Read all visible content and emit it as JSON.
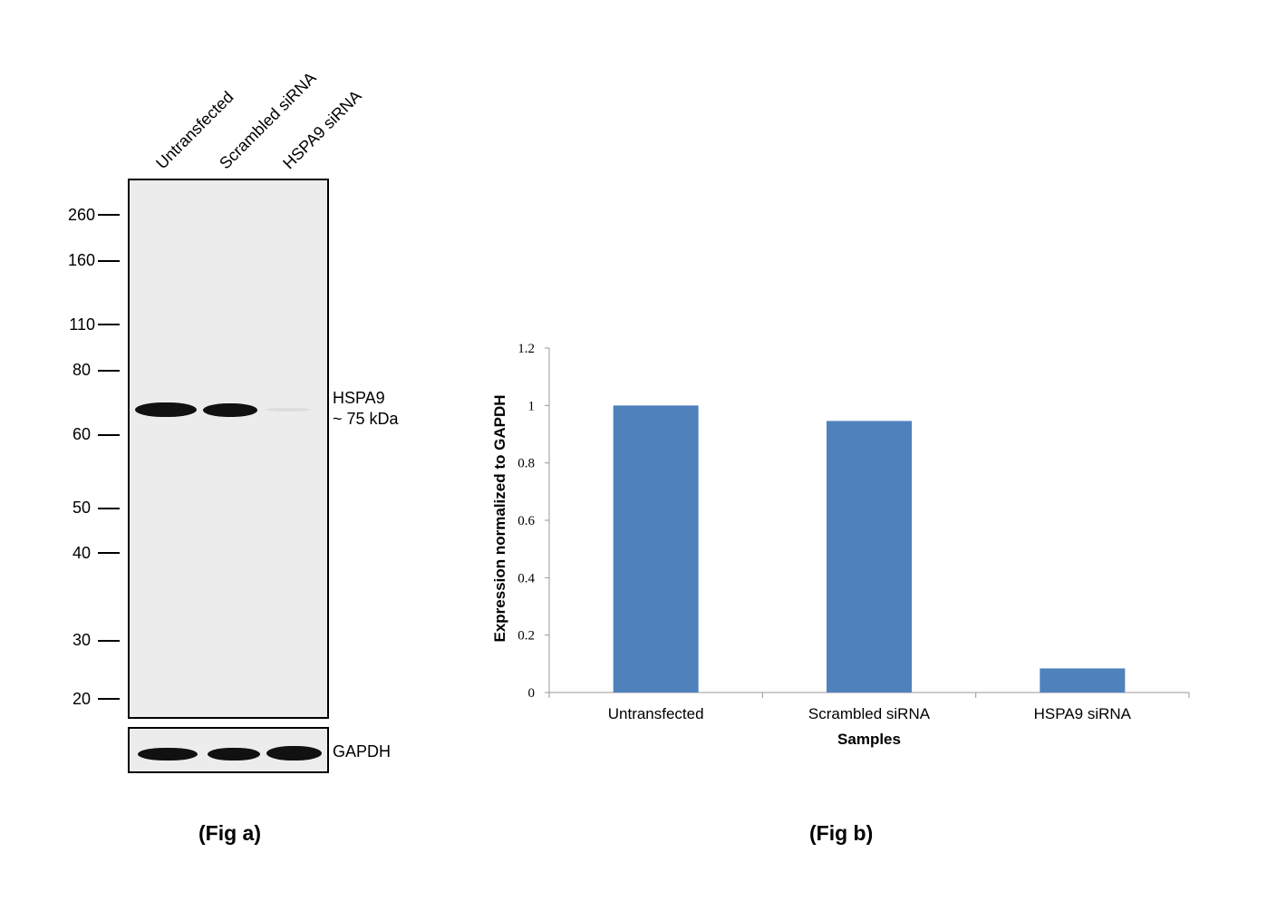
{
  "fig_a": {
    "caption": "(Fig a)",
    "lanes": [
      "Untransfected",
      "Scrambled siRNA",
      "HSPA9 siRNA"
    ],
    "mw_markers": [
      "260",
      "160",
      "110",
      "80",
      "60",
      "50",
      "40",
      "30",
      "20"
    ],
    "band_label_line1": "HSPA9",
    "band_label_line2": "~ 75 kDa",
    "loading_control": "GAPDH"
  },
  "fig_b": {
    "caption": "(Fig b)"
  },
  "chart_data": {
    "type": "bar",
    "categories": [
      "Untransfected",
      "Scrambled siRNA",
      "HSPA9 siRNA"
    ],
    "values": [
      1.0,
      0.946,
      0.084
    ],
    "title": "",
    "xlabel": "Samples",
    "ylabel": "Expression normalized to GAPDH",
    "ylim": [
      0,
      1.2
    ],
    "yticks": [
      "0",
      "0.2",
      "0.4",
      "0.6",
      "0.8",
      "1",
      "1.2"
    ],
    "grid": false,
    "bar_color": "#4f81bd"
  }
}
